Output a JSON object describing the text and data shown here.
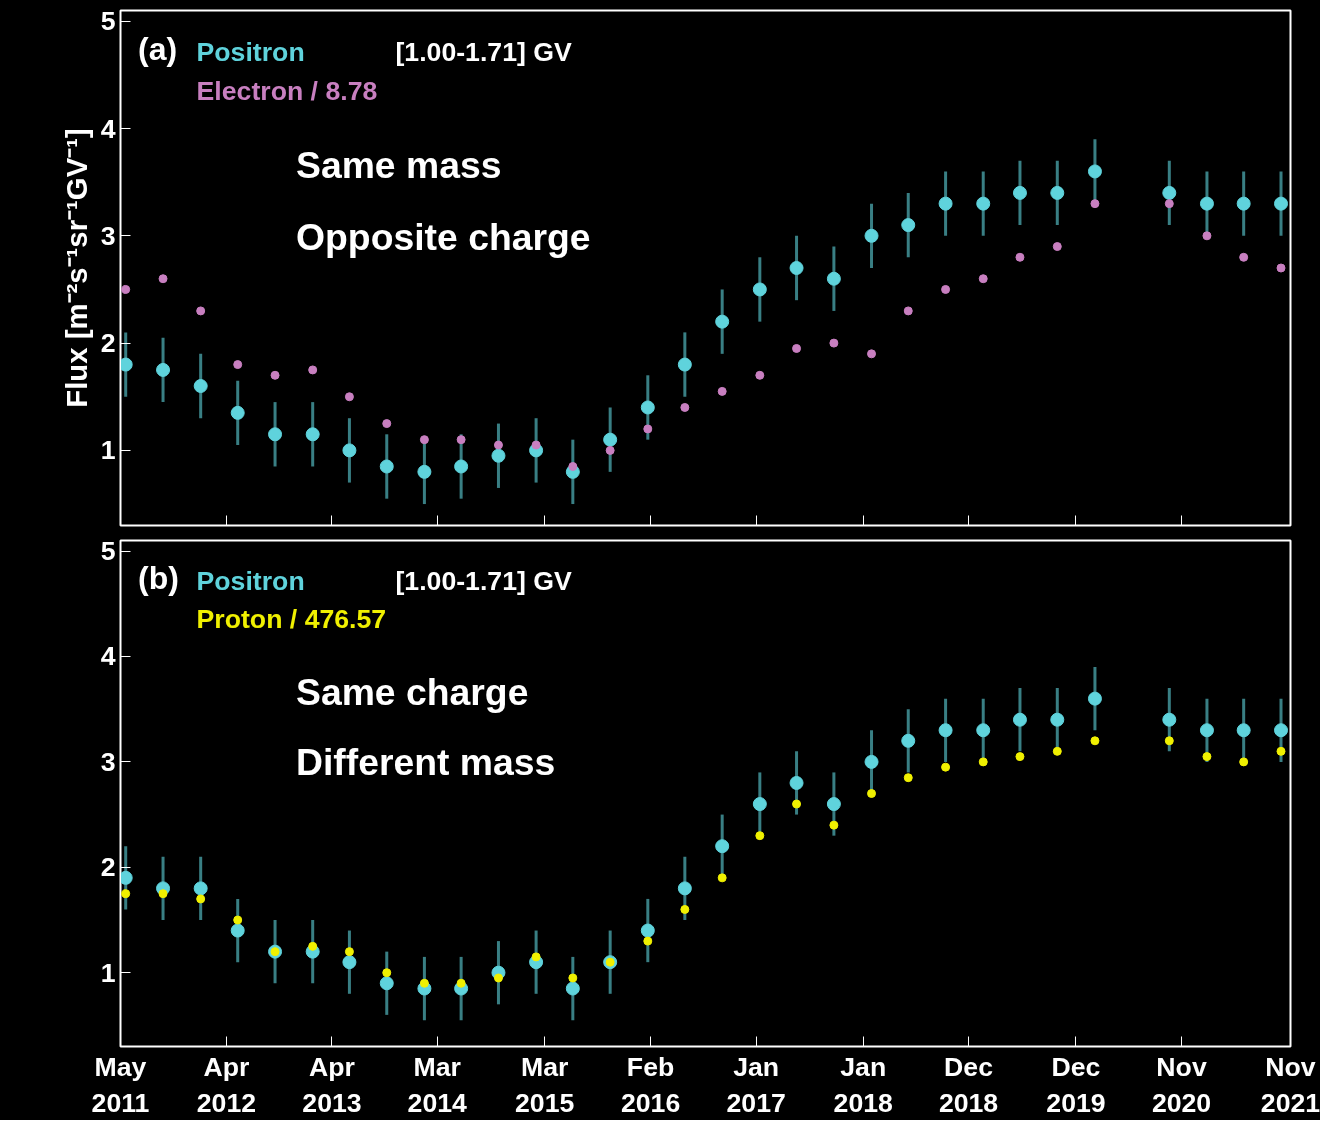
{
  "chart_data": [
    {
      "type": "scatter",
      "title": "(a)",
      "ylabel": "Flux [m⁻²s⁻¹sr⁻¹GV⁻¹]",
      "annotations": [
        "[1.00-1.71] GV",
        "Same mass",
        "Opposite charge"
      ],
      "legend": "top left",
      "marker": "circle",
      "grid": false,
      "tick_labels": "y",
      "x": [
        "2011-06",
        "2011-10",
        "2012-02",
        "2012-06",
        "2012-10",
        "2013-02",
        "2013-06",
        "2013-10",
        "2014-02",
        "2014-06",
        "2014-10",
        "2014-12",
        "2015-02",
        "2015-06",
        "2015-10",
        "2016-02",
        "2016-06",
        "2016-10",
        "2017-02",
        "2017-06",
        "2017-10",
        "2018-02",
        "2018-06",
        "2018-10",
        "2019-02",
        "2019-06",
        "2019-10",
        "2020-02",
        "2020-06",
        "2020-10",
        "2021-02",
        "2021-06",
        "2021-10"
      ],
      "xlim": [
        "2011-05-15",
        "2021-11-01"
      ],
      "xticks": [
        {
          "value": "2011-05-15",
          "label": null
        },
        {
          "value": "2012-04-25",
          "label": null
        },
        {
          "value": "2013-04-05",
          "label": null
        },
        {
          "value": "2014-03-15",
          "label": null
        },
        {
          "value": "2015-03-01",
          "label": null
        },
        {
          "value": "2016-02-10",
          "label": null
        },
        {
          "value": "2017-01-20",
          "label": null
        },
        {
          "value": "2018-01-05",
          "label": null
        },
        {
          "value": "2018-12-15",
          "label": null
        },
        {
          "value": "2019-12-01",
          "label": null
        },
        {
          "value": "2020-11-10",
          "label": null
        },
        {
          "value": "2021-11-01",
          "label": null
        }
      ],
      "ylim": [
        0.3,
        5.1
      ],
      "yticks": [
        1,
        2,
        3,
        4,
        5
      ],
      "series": [
        {
          "name": "Positron",
          "color": "#5fd3dc",
          "values": [
            1.8,
            1.75,
            1.6,
            1.35,
            1.15,
            1.15,
            1.0,
            0.85,
            0.8,
            0.85,
            0.95,
            null,
            1.0,
            0.8,
            1.1,
            1.4,
            1.8,
            2.2,
            2.5,
            2.7,
            2.6,
            3.0,
            3.1,
            3.3,
            3.3,
            3.4,
            3.4,
            3.6,
            null,
            3.4,
            3.3,
            3.3,
            3.3
          ],
          "errors": [
            0.3,
            0.3,
            0.3,
            0.3,
            0.3,
            0.3,
            0.3,
            0.3,
            0.3,
            0.3,
            0.3,
            null,
            0.3,
            0.3,
            0.3,
            0.3,
            0.3,
            0.3,
            0.3,
            0.3,
            0.3,
            0.3,
            0.3,
            0.3,
            0.3,
            0.3,
            0.3,
            0.3,
            null,
            0.3,
            0.3,
            0.3,
            0.3
          ]
        },
        {
          "name": "Electron / 8.78",
          "color": "#c87fc0",
          "values": [
            2.5,
            2.6,
            2.3,
            1.8,
            1.7,
            1.75,
            1.5,
            1.25,
            1.1,
            1.1,
            1.05,
            null,
            1.05,
            0.85,
            1.0,
            1.2,
            1.4,
            1.55,
            1.7,
            1.95,
            2.0,
            1.9,
            2.3,
            2.5,
            2.6,
            2.8,
            2.9,
            3.3,
            null,
            3.3,
            3.0,
            2.8,
            2.7
          ]
        }
      ]
    },
    {
      "type": "scatter",
      "title": "(b)",
      "annotations": [
        "[1.00-1.71] GV",
        "Same charge",
        "Different mass"
      ],
      "legend": "top left",
      "marker": "circle",
      "grid": false,
      "x": [
        "2011-06",
        "2011-10",
        "2012-02",
        "2012-06",
        "2012-10",
        "2013-02",
        "2013-06",
        "2013-10",
        "2014-02",
        "2014-06",
        "2014-10",
        "2014-12",
        "2015-02",
        "2015-06",
        "2015-10",
        "2016-02",
        "2016-06",
        "2016-10",
        "2017-02",
        "2017-06",
        "2017-10",
        "2018-02",
        "2018-06",
        "2018-10",
        "2019-02",
        "2019-06",
        "2019-10",
        "2020-02",
        "2020-06",
        "2020-10",
        "2021-02",
        "2021-06",
        "2021-10"
      ],
      "xlim": [
        "2011-05-15",
        "2021-11-01"
      ],
      "xticks": [
        {
          "value": "2011-05-15",
          "label": "May 2011"
        },
        {
          "value": "2012-04-25",
          "label": "Apr 2012"
        },
        {
          "value": "2013-04-05",
          "label": "Apr 2013"
        },
        {
          "value": "2014-03-15",
          "label": "Mar 2014"
        },
        {
          "value": "2015-03-01",
          "label": "Mar 2015"
        },
        {
          "value": "2016-02-10",
          "label": "Feb 2016"
        },
        {
          "value": "2017-01-20",
          "label": "Jan 2017"
        },
        {
          "value": "2018-01-05",
          "label": "Jan 2018"
        },
        {
          "value": "2018-12-15",
          "label": "Dec 2018"
        },
        {
          "value": "2019-12-01",
          "label": "Dec 2019"
        },
        {
          "value": "2020-11-10",
          "label": "Nov 2020"
        },
        {
          "value": "2021-11-01",
          "label": "Nov 2021"
        }
      ],
      "ylim": [
        0.3,
        5.1
      ],
      "yticks": [
        1,
        2,
        3,
        4,
        5
      ],
      "series": [
        {
          "name": "Positron",
          "color": "#5fd3dc",
          "values": [
            1.9,
            1.8,
            1.8,
            1.4,
            1.2,
            1.2,
            1.1,
            0.9,
            0.85,
            0.85,
            1.0,
            null,
            1.1,
            0.85,
            1.1,
            1.4,
            1.8,
            2.2,
            2.6,
            2.8,
            2.6,
            3.0,
            3.2,
            3.3,
            3.3,
            3.4,
            3.4,
            3.6,
            null,
            3.4,
            3.3,
            3.3,
            3.3
          ],
          "errors": [
            0.3,
            0.3,
            0.3,
            0.3,
            0.3,
            0.3,
            0.3,
            0.3,
            0.3,
            0.3,
            0.3,
            null,
            0.3,
            0.3,
            0.3,
            0.3,
            0.3,
            0.3,
            0.3,
            0.3,
            0.3,
            0.3,
            0.3,
            0.3,
            0.3,
            0.3,
            0.3,
            0.3,
            null,
            0.3,
            0.3,
            0.3,
            0.3
          ]
        },
        {
          "name": "Proton / 476.57",
          "color": "#f0f000",
          "values": [
            1.75,
            1.75,
            1.7,
            1.5,
            1.2,
            1.25,
            1.2,
            1.0,
            0.9,
            0.9,
            0.95,
            null,
            1.15,
            0.95,
            1.1,
            1.3,
            1.6,
            1.9,
            2.3,
            2.6,
            2.4,
            2.7,
            2.85,
            2.95,
            3.0,
            3.05,
            3.1,
            3.2,
            null,
            3.2,
            3.05,
            3.0,
            3.1
          ]
        }
      ]
    }
  ]
}
